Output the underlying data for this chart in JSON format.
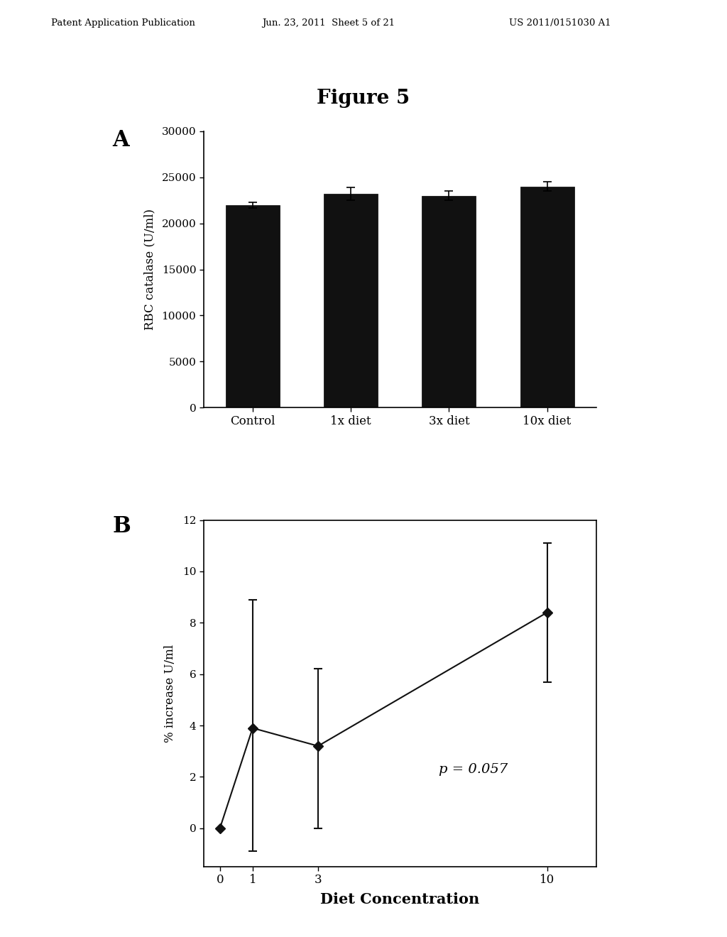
{
  "header_left": "Patent Application Publication",
  "header_mid": "Jun. 23, 2011  Sheet 5 of 21",
  "header_right": "US 2011/0151030 A1",
  "figure_title": "Figure 5",
  "panel_A": {
    "label": "A",
    "categories": [
      "Control",
      "1x diet",
      "3x diet",
      "10x diet"
    ],
    "values": [
      22000,
      23200,
      23000,
      24000
    ],
    "errors": [
      300,
      700,
      500,
      500
    ],
    "ylabel": "RBC catalase (U/ml)",
    "ylim": [
      0,
      30000
    ],
    "yticks": [
      0,
      5000,
      10000,
      15000,
      20000,
      25000,
      30000
    ],
    "bar_color": "#111111"
  },
  "panel_B": {
    "label": "B",
    "x": [
      0,
      1,
      3,
      10
    ],
    "y": [
      0,
      3.9,
      3.2,
      8.4
    ],
    "yerr_upper": [
      0,
      5.0,
      3.0,
      2.7
    ],
    "yerr_lower": [
      0,
      4.8,
      3.2,
      2.7
    ],
    "ylabel": "% increase U/ml",
    "xlabel": "Diet Concentration",
    "ylim": [
      -1.5,
      12
    ],
    "yticks": [
      0,
      2,
      4,
      6,
      8,
      10,
      12
    ],
    "annotation": "p = 0.057",
    "line_color": "#111111",
    "marker": "D",
    "marker_size": 7,
    "marker_color": "#111111"
  },
  "bg_color": "#ffffff",
  "text_color": "#000000"
}
